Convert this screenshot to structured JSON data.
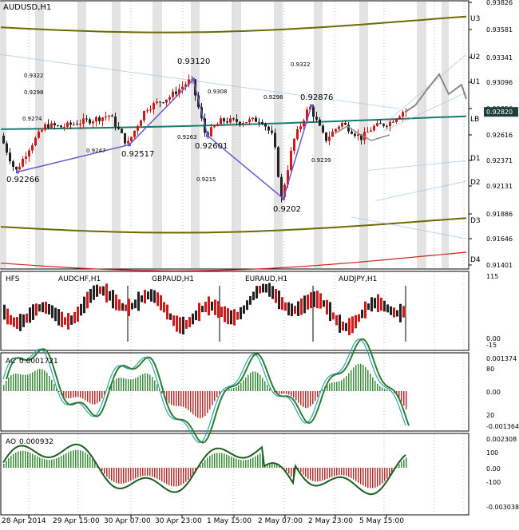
{
  "symbol_title": "AUDUSD,H1",
  "colors": {
    "bull": "#d01a1a",
    "bear": "#222222",
    "pivot": "#6b6b00",
    "lb": "#1a7a70",
    "d4": "#cc2222",
    "zigzag": "#6a5acd",
    "ac": "#2e7d32",
    "ao": "#1b5e20",
    "vline": "#d8d8d8"
  },
  "chart_data": [
    {
      "type": "line",
      "title": "AUDUSD,H1",
      "ylim": [
        0.914,
        0.9383
      ],
      "price_scale": [
        "0.93826",
        "0.93581",
        "0.93341",
        "0.93096",
        "0.92856",
        "0.92616",
        "0.92371",
        "0.92131",
        "0.91886",
        "0.91646",
        "0.91401"
      ],
      "current_price": "0.92820",
      "level_labels": [
        "U3",
        "U2",
        "U1",
        "LB",
        "D1",
        "D2",
        "D3",
        "D4"
      ],
      "zigzag": [
        {
          "x": 22,
          "value": 0.92266,
          "label": "0.92266"
        },
        {
          "x": 162,
          "value": 0.92517,
          "label": "0.92517"
        },
        {
          "x": 242,
          "value": 0.9312,
          "label": "0.93120"
        },
        {
          "x": 260,
          "value": 0.92601,
          "label": "0.92601"
        },
        {
          "x": 355,
          "value": 0.9202,
          "label": "0.9202"
        },
        {
          "x": 390,
          "value": 0.92876,
          "label": "0.92876"
        }
      ],
      "annotations": [
        "0.9322",
        "0.9298",
        "0.9274",
        "0.9247",
        "0.9308",
        "0.9263",
        "0.9215",
        "0.9322",
        "0.9298",
        "0.9239"
      ]
    },
    {
      "type": "bar",
      "title": "HFS",
      "series_names": [
        "AUDCHF,H1",
        "GBPAUD,H1",
        "EURAUD,H1",
        "AUDJPY,H1"
      ],
      "ticks": [
        "115",
        "0.00",
        "-15"
      ]
    },
    {
      "type": "line",
      "title": "AC",
      "value": "0.0001721",
      "ticks": [
        "0.001374",
        "80",
        "0.00",
        "20",
        "-0.001364"
      ]
    },
    {
      "type": "line",
      "title": "AO",
      "value": "0.000932",
      "ticks": [
        "0.002308",
        "100",
        "0.00",
        "-100",
        "-0.003038"
      ]
    }
  ],
  "time_labels": [
    "28 Apr 2014",
    "29 Apr 15:00",
    "30 Apr 07:00",
    "30 Apr 23:00",
    "1 May 15:00",
    "2 May 07:00",
    "2 May 23:00",
    "5 May 15:00"
  ]
}
